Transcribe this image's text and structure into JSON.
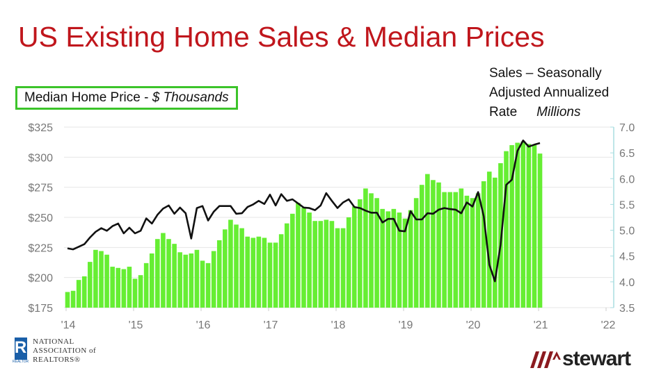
{
  "title": "US Existing Home Sales & Median Prices",
  "left_axis_label": {
    "main": "Median Home Price - ",
    "italic": "$ Thousands"
  },
  "right_axis_label": {
    "line1": "Sales – Seasonally",
    "line2": "Adjusted Annualized",
    "line3": "Rate",
    "italic": "Millions"
  },
  "logos": {
    "nar": {
      "letter": "R",
      "small": "REALTOR",
      "text": [
        "NATIONAL",
        "ASSOCIATION of",
        "REALTORS®"
      ]
    },
    "stewart": "stewart"
  },
  "chart_data": {
    "type": "bar+line",
    "x_ticks": [
      "'14",
      "'15",
      "'16",
      "'17",
      "'18",
      "'19",
      "'20",
      "'21",
      "'22"
    ],
    "x_start": "2014-01",
    "x_end": "2021-01",
    "frequency": "monthly",
    "left_axis": {
      "ticks": [
        "$175",
        "$200",
        "$225",
        "$250",
        "$275",
        "$300",
        "$325"
      ],
      "range": [
        175,
        325
      ]
    },
    "right_axis": {
      "ticks": [
        "3.5",
        "4.0",
        "4.5",
        "5.0",
        "5.5",
        "6.0",
        "6.5",
        "7.0"
      ],
      "range": [
        3.5,
        7.0
      ]
    },
    "grid": true,
    "series": [
      {
        "type": "bar",
        "axis": "left",
        "color": "#66ee33",
        "values": [
          188,
          189,
          198,
          201,
          213,
          223,
          222,
          219,
          209,
          208,
          207,
          209,
          199,
          202,
          212,
          220,
          232,
          237,
          232,
          228,
          221,
          219,
          220,
          223,
          214,
          212,
          222,
          231,
          240,
          248,
          244,
          241,
          234,
          233,
          234,
          233,
          229,
          229,
          236,
          245,
          253,
          262,
          258,
          254,
          247,
          247,
          248,
          247,
          241,
          241,
          250,
          259,
          265,
          274,
          270,
          266,
          257,
          255,
          257,
          254,
          249,
          256,
          266,
          277,
          286,
          281,
          279,
          271,
          271,
          271,
          274,
          268,
          266,
          270,
          280,
          288,
          283,
          295,
          305,
          310,
          312,
          313,
          311,
          310,
          303
        ]
      },
      {
        "type": "line",
        "axis": "right",
        "color": "#111111",
        "values": [
          4.65,
          4.63,
          4.68,
          4.73,
          4.86,
          4.97,
          5.04,
          4.99,
          5.08,
          5.13,
          4.94,
          5.05,
          4.94,
          4.99,
          5.23,
          5.13,
          5.3,
          5.42,
          5.48,
          5.32,
          5.44,
          5.33,
          4.84,
          5.43,
          5.47,
          5.19,
          5.36,
          5.47,
          5.47,
          5.47,
          5.32,
          5.33,
          5.45,
          5.5,
          5.57,
          5.51,
          5.69,
          5.48,
          5.7,
          5.57,
          5.6,
          5.52,
          5.44,
          5.43,
          5.39,
          5.48,
          5.72,
          5.57,
          5.43,
          5.54,
          5.6,
          5.45,
          5.43,
          5.38,
          5.34,
          5.34,
          5.15,
          5.22,
          5.22,
          4.99,
          4.98,
          5.37,
          5.21,
          5.21,
          5.33,
          5.32,
          5.4,
          5.43,
          5.41,
          5.4,
          5.33,
          5.54,
          5.46,
          5.74,
          5.27,
          4.33,
          4.01,
          4.72,
          5.88,
          5.98,
          6.54,
          6.74,
          6.62,
          6.66,
          6.69
        ]
      }
    ]
  }
}
